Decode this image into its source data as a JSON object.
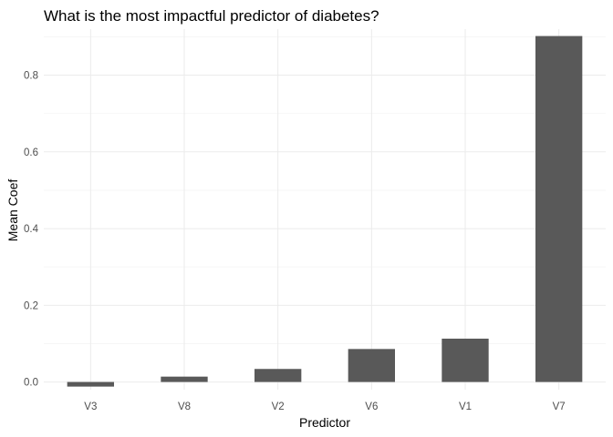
{
  "chart_data": {
    "type": "bar",
    "title": "What is the most impactful predictor of diabetes?",
    "xlabel": "Predictor",
    "ylabel": "Mean Coef",
    "categories": [
      "V3",
      "V8",
      "V2",
      "V6",
      "V1",
      "V7"
    ],
    "values": [
      -0.012,
      0.014,
      0.034,
      0.086,
      0.113,
      0.902
    ],
    "ylim": [
      -0.02,
      0.92
    ],
    "yticks": [
      0.0,
      0.2,
      0.4,
      0.6,
      0.8
    ],
    "ytick_labels": [
      "0.0",
      "0.2",
      "0.4",
      "0.6",
      "0.8"
    ],
    "grid": true,
    "bar_color": "#595959",
    "grid_major_color": "#ebebeb",
    "grid_minor_color": "#f5f5f5"
  }
}
